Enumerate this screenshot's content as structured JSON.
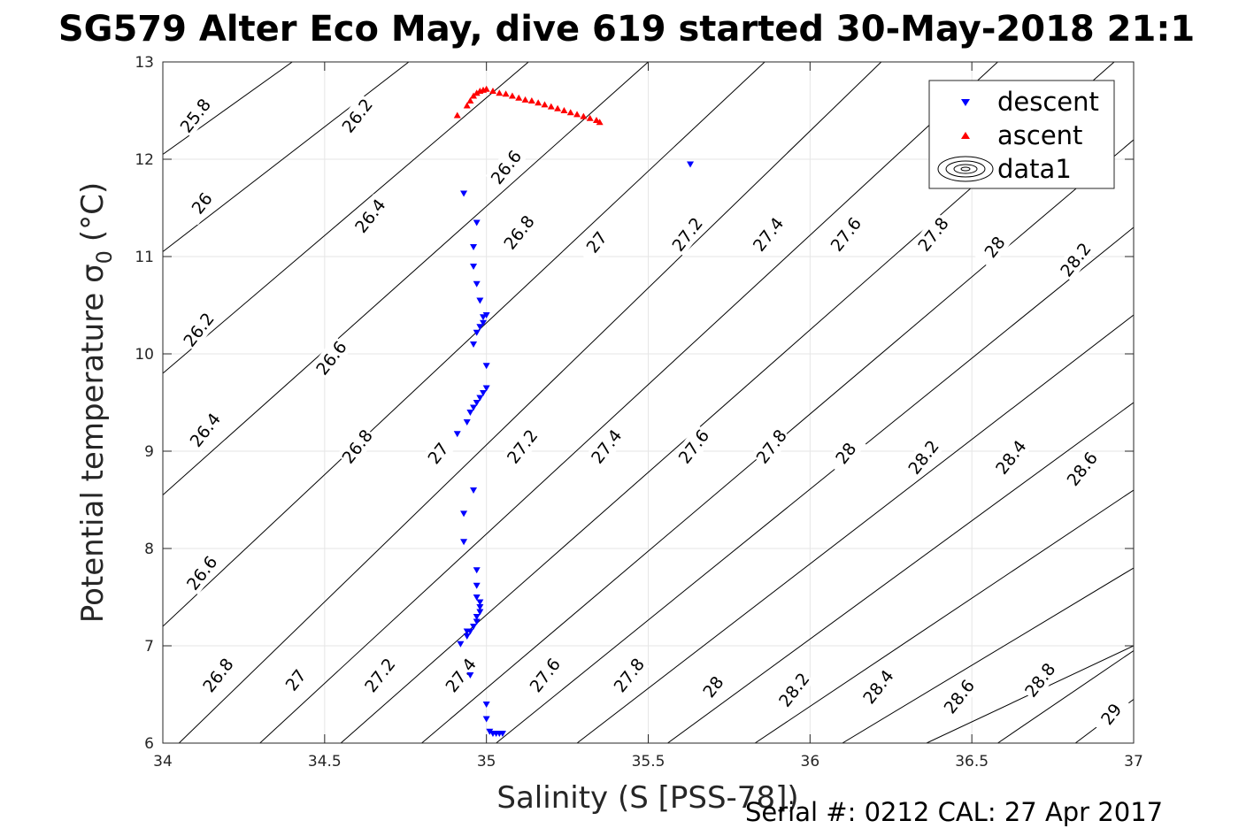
{
  "chart_data": {
    "type": "scatter",
    "title": "SG579 Alter Eco May, dive 619 started 30-May-2018 21:1",
    "xlabel": "Salinity (S [PSS-78])",
    "ylabel_main": "Potential temperature σ",
    "ylabel_sub": "0",
    "ylabel_unit": "(°C)",
    "footer": "Serial #: 0212  CAL: 27 Apr 2017",
    "xlim": [
      34,
      37
    ],
    "ylim": [
      6,
      13
    ],
    "x_ticks": [
      "34",
      "34.5",
      "35",
      "35.5",
      "36",
      "36.5",
      "37"
    ],
    "y_ticks": [
      "6",
      "7",
      "8",
      "9",
      "10",
      "11",
      "12",
      "13"
    ],
    "grid": true,
    "legend_position": "top-right",
    "legend": [
      {
        "label": "descent",
        "marker": "triangle-down",
        "color": "#0000ff"
      },
      {
        "label": "ascent",
        "marker": "triangle-up",
        "color": "#ff0000"
      },
      {
        "label": "data1",
        "marker": "contour",
        "color": "#000000"
      }
    ],
    "contour_lines": [
      {
        "value": "25.8",
        "x0": 34.0,
        "y0": 12.05,
        "x1": 34.4,
        "y1": 13.0
      },
      {
        "value": "26",
        "x0": 34.0,
        "y0": 11.05,
        "x1": 34.76,
        "y1": 13.0
      },
      {
        "value": "26.2",
        "x0": 34.0,
        "y0": 9.8,
        "x1": 35.13,
        "y1": 13.0
      },
      {
        "value": "26.4",
        "x0": 34.0,
        "y0": 8.55,
        "x1": 35.5,
        "y1": 13.0
      },
      {
        "value": "26.6",
        "x0": 34.0,
        "y0": 7.2,
        "x1": 35.86,
        "y1": 13.0
      },
      {
        "value": "26.8",
        "x0": 34.05,
        "y0": 6.0,
        "x1": 36.22,
        "y1": 13.0
      },
      {
        "value": "27",
        "x0": 34.3,
        "y0": 6.0,
        "x1": 36.58,
        "y1": 13.0
      },
      {
        "value": "27.2",
        "x0": 34.55,
        "y0": 6.0,
        "x1": 36.94,
        "y1": 13.0
      },
      {
        "value": "27.4",
        "x0": 34.8,
        "y0": 6.0,
        "x1": 37.0,
        "y1": 12.2
      },
      {
        "value": "27.6",
        "x0": 35.03,
        "y0": 6.0,
        "x1": 37.0,
        "y1": 11.3
      },
      {
        "value": "27.8",
        "x0": 35.28,
        "y0": 6.0,
        "x1": 37.0,
        "y1": 10.4
      },
      {
        "value": "28",
        "x0": 35.56,
        "y0": 6.0,
        "x1": 37.0,
        "y1": 9.5
      },
      {
        "value": "28.2",
        "x0": 35.83,
        "y0": 6.0,
        "x1": 37.0,
        "y1": 8.6
      },
      {
        "value": "28.4",
        "x0": 36.1,
        "y0": 6.0,
        "x1": 37.0,
        "y1": 7.8
      },
      {
        "value": "28.6",
        "x0": 36.36,
        "y0": 6.0,
        "x1": 37.0,
        "y1": 7.0
      },
      {
        "value": "28.8",
        "x0": 36.58,
        "y0": 6.0,
        "x1": 37.0,
        "y1": 6.95
      },
      {
        "value": "29",
        "x0": 36.82,
        "y0": 6.0,
        "x1": 37.0,
        "y1": 6.45
      }
    ],
    "contour_labels": [
      {
        "text": "25.8",
        "x": 34.1,
        "y": 12.45
      },
      {
        "text": "26.2",
        "x": 34.6,
        "y": 12.45
      },
      {
        "text": "26",
        "x": 34.12,
        "y": 11.55
      },
      {
        "text": "26.6",
        "x": 35.06,
        "y": 11.92
      },
      {
        "text": "26.4",
        "x": 34.64,
        "y": 11.42
      },
      {
        "text": "26.8",
        "x": 35.1,
        "y": 11.25
      },
      {
        "text": "27",
        "x": 35.34,
        "y": 11.15
      },
      {
        "text": "27.2",
        "x": 35.62,
        "y": 11.23
      },
      {
        "text": "27.4",
        "x": 35.87,
        "y": 11.23
      },
      {
        "text": "27.6",
        "x": 36.11,
        "y": 11.23
      },
      {
        "text": "27.8",
        "x": 36.38,
        "y": 11.23
      },
      {
        "text": "28",
        "x": 36.57,
        "y": 11.1
      },
      {
        "text": "28.2",
        "x": 36.82,
        "y": 10.97
      },
      {
        "text": "26.2",
        "x": 34.11,
        "y": 10.25
      },
      {
        "text": "26.6",
        "x": 34.52,
        "y": 9.96
      },
      {
        "text": "26.4",
        "x": 34.13,
        "y": 9.22
      },
      {
        "text": "26.8",
        "x": 34.6,
        "y": 9.05
      },
      {
        "text": "27",
        "x": 34.85,
        "y": 8.98
      },
      {
        "text": "27.2",
        "x": 35.11,
        "y": 9.05
      },
      {
        "text": "27.4",
        "x": 35.37,
        "y": 9.05
      },
      {
        "text": "27.6",
        "x": 35.64,
        "y": 9.05
      },
      {
        "text": "27.8",
        "x": 35.88,
        "y": 9.05
      },
      {
        "text": "28",
        "x": 36.11,
        "y": 8.98
      },
      {
        "text": "28.2",
        "x": 36.35,
        "y": 8.94
      },
      {
        "text": "28.4",
        "x": 36.62,
        "y": 8.94
      },
      {
        "text": "28.6",
        "x": 36.84,
        "y": 8.82
      },
      {
        "text": "26.6",
        "x": 34.12,
        "y": 7.75
      },
      {
        "text": "26.8",
        "x": 34.17,
        "y": 6.7
      },
      {
        "text": "27",
        "x": 34.41,
        "y": 6.65
      },
      {
        "text": "27.2",
        "x": 34.67,
        "y": 6.7
      },
      {
        "text": "27.4",
        "x": 34.92,
        "y": 6.7
      },
      {
        "text": "27.6",
        "x": 35.18,
        "y": 6.7
      },
      {
        "text": "27.8",
        "x": 35.44,
        "y": 6.7
      },
      {
        "text": "28",
        "x": 35.7,
        "y": 6.58
      },
      {
        "text": "28.2",
        "x": 35.95,
        "y": 6.55
      },
      {
        "text": "28.4",
        "x": 36.21,
        "y": 6.58
      },
      {
        "text": "28.6",
        "x": 36.46,
        "y": 6.48
      },
      {
        "text": "28.8",
        "x": 36.71,
        "y": 6.65
      },
      {
        "text": "29",
        "x": 36.93,
        "y": 6.3
      }
    ],
    "series": [
      {
        "name": "descent",
        "marker": "triangle-down",
        "color": "#0000ff",
        "x": [
          35.63,
          34.93,
          34.97,
          34.96,
          34.96,
          34.97,
          34.98,
          34.99,
          35.0,
          34.99,
          34.98,
          34.97,
          34.96,
          35.0,
          35.0,
          34.99,
          34.98,
          34.97,
          34.96,
          34.95,
          34.94,
          34.91,
          34.93,
          34.96,
          34.93,
          34.94,
          34.97,
          34.97,
          34.97,
          34.98,
          34.98,
          34.98,
          34.97,
          34.97,
          34.96,
          34.95,
          34.94,
          34.92,
          34.95,
          35.0,
          35.0,
          35.01,
          35.02,
          35.03,
          35.04,
          35.05
        ],
        "y": [
          11.95,
          11.65,
          11.35,
          11.1,
          10.9,
          10.72,
          10.55,
          10.38,
          10.4,
          10.32,
          10.28,
          10.22,
          10.1,
          9.88,
          9.65,
          9.6,
          9.55,
          9.5,
          9.45,
          9.4,
          9.3,
          9.18,
          8.36,
          8.6,
          8.07,
          7.15,
          7.78,
          7.62,
          7.5,
          7.45,
          7.4,
          7.35,
          7.3,
          7.25,
          7.2,
          7.15,
          7.1,
          7.02,
          6.7,
          6.4,
          6.25,
          6.12,
          6.1,
          6.1,
          6.1,
          6.1
        ]
      },
      {
        "name": "ascent",
        "marker": "triangle-up",
        "color": "#ff0000",
        "x": [
          34.91,
          34.94,
          34.95,
          34.96,
          34.97,
          34.98,
          34.99,
          35.0,
          35.02,
          35.04,
          35.06,
          35.08,
          35.1,
          35.12,
          35.14,
          35.16,
          35.18,
          35.2,
          35.22,
          35.24,
          35.26,
          35.28,
          35.3,
          35.32,
          35.34,
          35.35
        ],
        "y": [
          12.45,
          12.55,
          12.6,
          12.65,
          12.68,
          12.7,
          12.71,
          12.72,
          12.7,
          12.68,
          12.67,
          12.65,
          12.63,
          12.61,
          12.6,
          12.58,
          12.56,
          12.54,
          12.52,
          12.5,
          12.48,
          12.46,
          12.44,
          12.42,
          12.4,
          12.38
        ]
      }
    ]
  }
}
